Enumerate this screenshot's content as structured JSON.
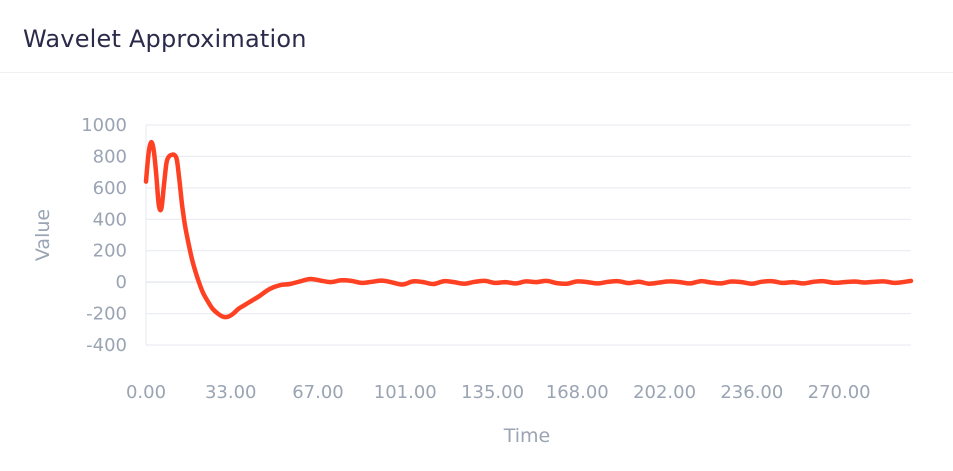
{
  "card": {
    "title": "Wavelet Approximation"
  },
  "chart_data": {
    "type": "line",
    "title": "Wavelet Approximation",
    "xlabel": "Time",
    "ylabel": "Value",
    "xlim": [
      0,
      298
    ],
    "ylim": [
      -400,
      1000
    ],
    "yticks": [
      1000,
      800,
      600,
      400,
      200,
      0,
      -200,
      -400
    ],
    "ytick_labels": [
      "1000",
      "800",
      "600",
      "400",
      "200",
      "0",
      "-200",
      "-400"
    ],
    "xticks": [
      0,
      33,
      67,
      101,
      135,
      168,
      202,
      236,
      270
    ],
    "xtick_labels": [
      "0.00",
      "33.00",
      "67.00",
      "101.00",
      "135.00",
      "168.00",
      "202.00",
      "236.00",
      "270.00"
    ],
    "grid": true,
    "line_color": "#ff4123",
    "grid_color": "#e6e9ef",
    "series": [
      {
        "x": [
          0,
          1,
          2,
          3,
          4,
          5,
          6,
          7,
          8,
          9,
          10,
          11,
          12,
          13,
          14,
          15,
          16,
          18,
          20,
          22,
          24,
          26,
          28,
          30,
          32,
          34,
          36,
          38,
          40,
          44,
          48,
          52,
          56,
          60,
          64,
          68,
          72,
          76,
          80,
          84,
          88,
          92,
          96,
          100,
          104,
          108,
          112,
          116,
          120,
          124,
          128,
          132,
          136,
          140,
          144,
          148,
          152,
          156,
          160,
          164,
          168,
          172,
          176,
          180,
          184,
          188,
          192,
          196,
          200,
          204,
          208,
          212,
          216,
          220,
          224,
          228,
          232,
          236,
          240,
          244,
          248,
          252,
          256,
          260,
          264,
          268,
          272,
          276,
          280,
          284,
          288,
          292,
          298
        ],
        "y": [
          640,
          820,
          890,
          840,
          680,
          490,
          470,
          620,
          760,
          800,
          810,
          810,
          780,
          650,
          500,
          380,
          290,
          140,
          30,
          -60,
          -120,
          -170,
          -200,
          -220,
          -220,
          -200,
          -170,
          -150,
          -130,
          -90,
          -45,
          -20,
          -12,
          5,
          20,
          10,
          0,
          12,
          8,
          -5,
          2,
          10,
          -2,
          -15,
          5,
          0,
          -12,
          6,
          0,
          -10,
          2,
          8,
          -5,
          0,
          -8,
          5,
          0,
          8,
          -6,
          -10,
          5,
          0,
          -8,
          2,
          6,
          -6,
          2,
          -10,
          -2,
          5,
          0,
          -8,
          6,
          -2,
          -8,
          4,
          0,
          -10,
          3,
          6,
          -5,
          0,
          -8,
          2,
          6,
          -4,
          0,
          4,
          -2,
          3,
          4,
          -5,
          8
        ]
      }
    ]
  }
}
